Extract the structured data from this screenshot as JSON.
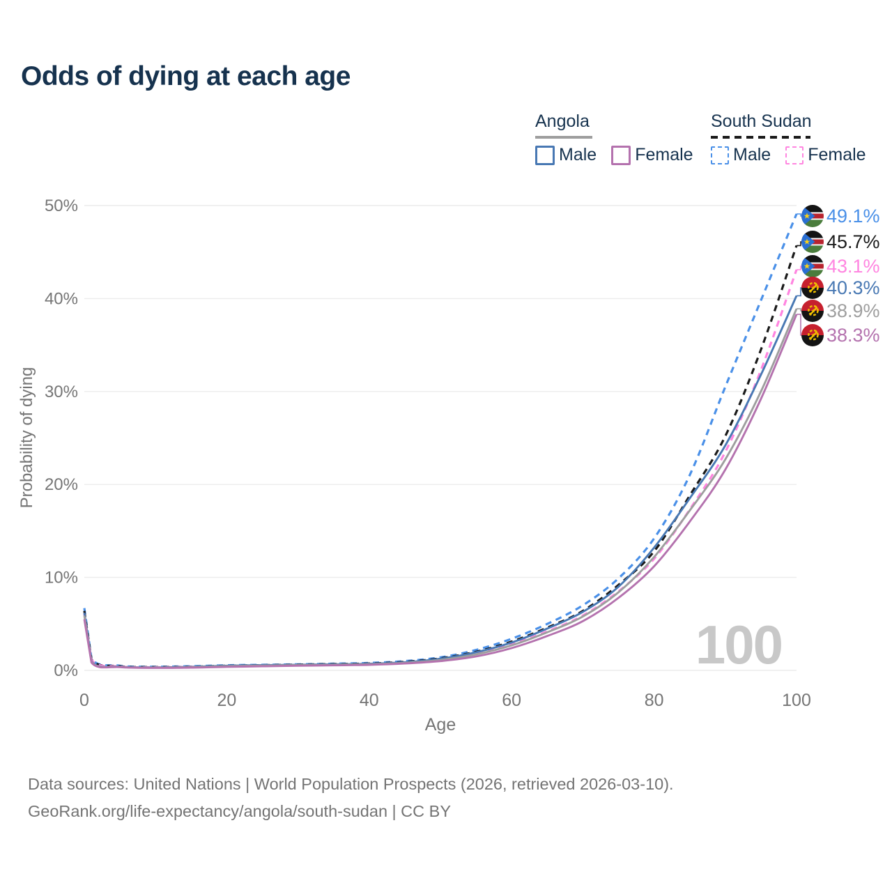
{
  "title": "Odds of dying at each age",
  "legend": {
    "groups": [
      {
        "name": "Angola",
        "line_style": "solid",
        "underline_color": "#9e9e9e",
        "items": [
          {
            "label": "Male",
            "color": "#4878b3"
          },
          {
            "label": "Female",
            "color": "#b472ae"
          }
        ]
      },
      {
        "name": "South Sudan",
        "line_style": "dashed",
        "underline_color": "#1a1a1a",
        "items": [
          {
            "label": "Male",
            "color": "#4a90e8"
          },
          {
            "label": "Female",
            "color": "#ff85e0"
          }
        ]
      }
    ]
  },
  "watermark_age": "100",
  "footer": {
    "line1": "Data sources: United Nations | World Population Prospects (2026, retrieved 2026-03-10).",
    "line2": "GeoRank.org/life-expectancy/angola/south-sudan | CC BY"
  },
  "chart_data": {
    "type": "line",
    "title": "Odds of dying at each age",
    "xlabel": "Age",
    "ylabel": "Probability of dying",
    "xlim": [
      0,
      100
    ],
    "ylim": [
      0,
      50
    ],
    "grid": "horizontal",
    "x_ticks": [
      "0",
      "20",
      "40",
      "60",
      "80",
      "100"
    ],
    "x_tick_values": [
      0,
      20,
      40,
      60,
      80,
      100
    ],
    "y_ticks": [
      "0%",
      "10%",
      "20%",
      "30%",
      "40%",
      "50%"
    ],
    "y_tick_values": [
      0,
      10,
      20,
      30,
      40,
      50
    ],
    "legend_position": "top-right",
    "ages": [
      0,
      1,
      5,
      10,
      15,
      20,
      25,
      30,
      35,
      40,
      45,
      50,
      55,
      60,
      65,
      70,
      75,
      80,
      85,
      90,
      95,
      100
    ],
    "series": [
      {
        "name": "South Sudan Male",
        "country": "south-sudan",
        "sex": "male",
        "style": "dashed",
        "color": "#4a90e8",
        "end_label": "49.1%",
        "label_color": "#4a90e8",
        "values": [
          6.7,
          1.3,
          0.5,
          0.4,
          0.45,
          0.55,
          0.6,
          0.65,
          0.72,
          0.8,
          1.0,
          1.4,
          2.2,
          3.4,
          5.0,
          7.0,
          9.9,
          14.2,
          21.0,
          30.5,
          39.8,
          49.1
        ]
      },
      {
        "name": "South Sudan (both sexes)",
        "country": "south-sudan",
        "sex": "total",
        "style": "dashed",
        "color": "#1a1a1a",
        "end_label": "45.7%",
        "label_color": "#1a1a1a",
        "values": [
          6.4,
          1.2,
          0.45,
          0.36,
          0.4,
          0.5,
          0.56,
          0.62,
          0.68,
          0.74,
          0.92,
          1.3,
          2.0,
          3.1,
          4.6,
          6.4,
          9.2,
          12.8,
          18.8,
          25.2,
          34.5,
          45.7
        ]
      },
      {
        "name": "South Sudan Female",
        "country": "south-sudan",
        "sex": "female",
        "style": "dashed",
        "color": "#ff85e0",
        "end_label": "43.1%",
        "label_color": "#ff85e0",
        "values": [
          6.1,
          1.15,
          0.42,
          0.34,
          0.38,
          0.46,
          0.52,
          0.57,
          0.62,
          0.68,
          0.84,
          1.2,
          1.8,
          2.8,
          4.2,
          5.9,
          8.5,
          12.0,
          17.3,
          23.5,
          32.3,
          43.1
        ]
      },
      {
        "name": "Angola Male",
        "country": "angola",
        "sex": "male",
        "style": "solid",
        "color": "#4878b3",
        "end_label": "40.3%",
        "label_color": "#4878b3",
        "values": [
          6.2,
          1.0,
          0.4,
          0.32,
          0.38,
          0.5,
          0.56,
          0.61,
          0.66,
          0.72,
          0.88,
          1.25,
          1.95,
          3.0,
          4.5,
          6.3,
          9.0,
          13.2,
          18.5,
          24.2,
          31.8,
          40.3
        ]
      },
      {
        "name": "Angola (both sexes)",
        "country": "angola",
        "sex": "total",
        "style": "solid",
        "color": "#9e9e9e",
        "end_label": "38.9%",
        "label_color": "#9e9e9e",
        "values": [
          5.9,
          0.95,
          0.38,
          0.3,
          0.35,
          0.45,
          0.51,
          0.56,
          0.61,
          0.66,
          0.81,
          1.12,
          1.72,
          2.7,
          4.1,
          5.8,
          8.4,
          12.2,
          17.2,
          22.7,
          30.0,
          38.9
        ]
      },
      {
        "name": "Angola Female",
        "country": "angola",
        "sex": "female",
        "style": "solid",
        "color": "#b472ae",
        "end_label": "38.3%",
        "label_color": "#b472ae",
        "values": [
          5.5,
          0.85,
          0.35,
          0.27,
          0.3,
          0.38,
          0.44,
          0.5,
          0.55,
          0.6,
          0.74,
          1.0,
          1.5,
          2.4,
          3.7,
          5.3,
          7.8,
          11.2,
          16.0,
          21.6,
          29.2,
          38.3
        ]
      }
    ]
  }
}
